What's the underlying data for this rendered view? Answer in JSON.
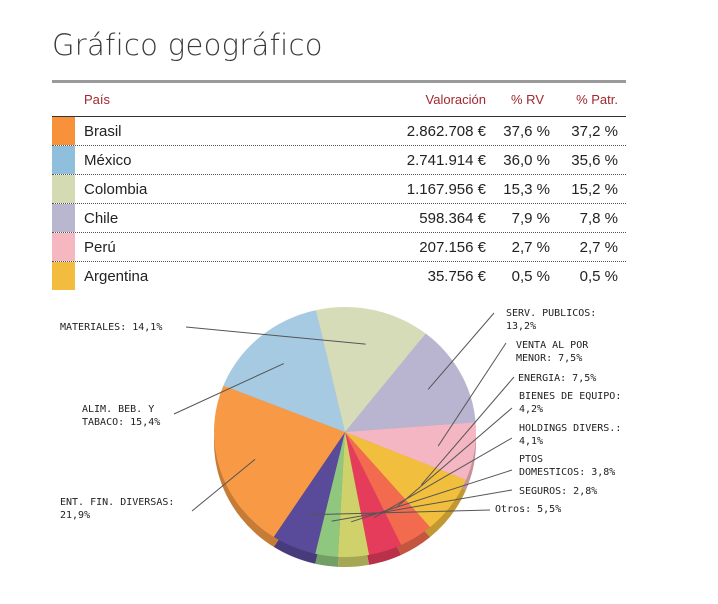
{
  "title": "Gráfico geográfico",
  "table": {
    "headers": {
      "country": "País",
      "valuation": "Valoración",
      "rv": "% RV",
      "patr": "% Patr."
    },
    "rows": [
      {
        "country": "Brasil",
        "valuation": "2.862.708 €",
        "rv": "37,6 %",
        "patr": "37,2 %",
        "color": "#f7923a"
      },
      {
        "country": "México",
        "valuation": "2.741.914 €",
        "rv": "36,0 %",
        "patr": "35,6 %",
        "color": "#8fbfdd"
      },
      {
        "country": "Colombia",
        "valuation": "1.167.956 €",
        "rv": "15,3 %",
        "patr": "15,2 %",
        "color": "#d4dbb3"
      },
      {
        "country": "Chile",
        "valuation": "598.364 €",
        "rv": "7,9 %",
        "patr": "7,8 %",
        "color": "#b9b6cf"
      },
      {
        "country": "Perú",
        "valuation": "207.156 €",
        "rv": "2,7 %",
        "patr": "2,7 %",
        "color": "#f5b7c0"
      },
      {
        "country": "Argentina",
        "valuation": "35.756 €",
        "rv": "0,5 %",
        "patr": "0,5 %",
        "color": "#f2bd3f"
      }
    ]
  },
  "chart_data": {
    "type": "pie",
    "slices": [
      {
        "label": "SERV. PUBLICOS: 13,2%",
        "value": 13.2,
        "color": "#b9b5d0"
      },
      {
        "label": "VENTA AL POR MENOR: 7,5%",
        "value": 7.5,
        "color": "#f4b6c3"
      },
      {
        "label": "ENERGIA: 7,5%",
        "value": 7.5,
        "color": "#f2be3e"
      },
      {
        "label": "BIENES DE EQUIPO: 4,2%",
        "value": 4.2,
        "color": "#f26b4f"
      },
      {
        "label": "HOLDINGS DIVERS.: 4,1%",
        "value": 4.1,
        "color": "#e63c5c"
      },
      {
        "label": "PTOS DOMESTICOS: 3,8%",
        "value": 3.8,
        "color": "#cfd16a"
      },
      {
        "label": "SEGUROS: 2,8%",
        "value": 2.8,
        "color": "#8fc77e"
      },
      {
        "label": "Otros: 5,5%",
        "value": 5.5,
        "color": "#5a4a9a"
      },
      {
        "label": "ENT. FIN. DIVERSAS: 21,9%",
        "value": 21.9,
        "color": "#f89a45"
      },
      {
        "label": "ALIM. BEB. Y TABACO: 15,4%",
        "value": 15.4,
        "color": "#a6cae2"
      },
      {
        "label": "MATERIALES: 14,1%",
        "value": 14.1,
        "color": "#d6dcb8"
      }
    ],
    "labels": [
      {
        "lines": [
          "SERV. PUBLICOS:",
          "13,2%"
        ]
      },
      {
        "lines": [
          "VENTA AL POR",
          "MENOR: 7,5%"
        ]
      },
      {
        "lines": [
          "ENERGIA: 7,5%"
        ]
      },
      {
        "lines": [
          "BIENES DE EQUIPO:",
          "4,2%"
        ]
      },
      {
        "lines": [
          "HOLDINGS DIVERS.:",
          "4,1%"
        ]
      },
      {
        "lines": [
          "PTOS",
          "DOMESTICOS: 3,8%"
        ]
      },
      {
        "lines": [
          "SEGUROS: 2,8%"
        ]
      },
      {
        "lines": [
          "Otros: 5,5%"
        ]
      },
      {
        "lines": [
          "ENT. FIN. DIVERSAS:",
          "21,9%"
        ]
      },
      {
        "lines": [
          "ALIM. BEB. Y",
          "TABACO: 15,4%"
        ]
      },
      {
        "lines": [
          "MATERIALES: 14,1%"
        ]
      }
    ]
  }
}
